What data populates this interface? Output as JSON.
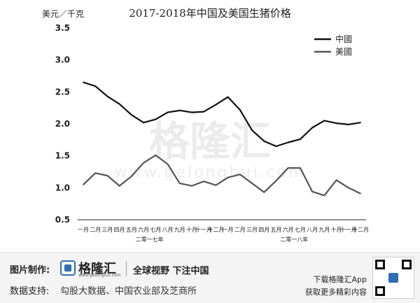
{
  "chart_data": {
    "type": "line",
    "title": "2017-2018年中国及美国生猪价格",
    "ylabel": "美元／千克",
    "ylim": [
      0.5,
      3.5
    ],
    "yticks": [
      "3.5",
      "3.0",
      "2.5",
      "2.0",
      "1.5",
      "1.0",
      "0.5"
    ],
    "categories": [
      "一月",
      "二月",
      "三月",
      "四月",
      "五月",
      "六月",
      "七月",
      "八月",
      "九月",
      "十月",
      "十一月",
      "十二月",
      "一月",
      "二月",
      "三月",
      "四月",
      "五月",
      "六月",
      "七月",
      "八月",
      "九月",
      "十月",
      "十一月",
      "十二月"
    ],
    "year_groups": [
      "二零一七年",
      "二零一八年"
    ],
    "legend_position": "top-right",
    "series": [
      {
        "name": "中國",
        "color": "#111111",
        "values": [
          2.65,
          2.59,
          2.43,
          2.31,
          2.14,
          2.02,
          2.07,
          2.18,
          2.21,
          2.18,
          2.19,
          2.3,
          2.42,
          2.22,
          1.9,
          1.73,
          1.65,
          1.71,
          1.76,
          1.94,
          2.05,
          2.01,
          1.99,
          2.02
        ]
      },
      {
        "name": "美國",
        "color": "#555555",
        "values": [
          1.05,
          1.23,
          1.19,
          1.03,
          1.18,
          1.39,
          1.51,
          1.37,
          1.07,
          1.03,
          1.1,
          1.04,
          1.16,
          1.21,
          1.07,
          0.93,
          1.11,
          1.31,
          1.31,
          0.94,
          0.88,
          1.12,
          1.0,
          0.91
        ]
      }
    ]
  },
  "watermark": {
    "main": "格隆汇",
    "sub": "www.gelonghui.com"
  },
  "footer": {
    "image_label": "图片制作:",
    "logo_name": "格隆汇",
    "logo_sub": "www.gelonghui.com",
    "slogan": "全球视野 下注中国",
    "source_label": "数据支持:",
    "source_text": "勾股大数据、中国农业部及芝商所",
    "app_line1": "下载格隆汇App",
    "app_line2": "获取更多精彩内容"
  }
}
